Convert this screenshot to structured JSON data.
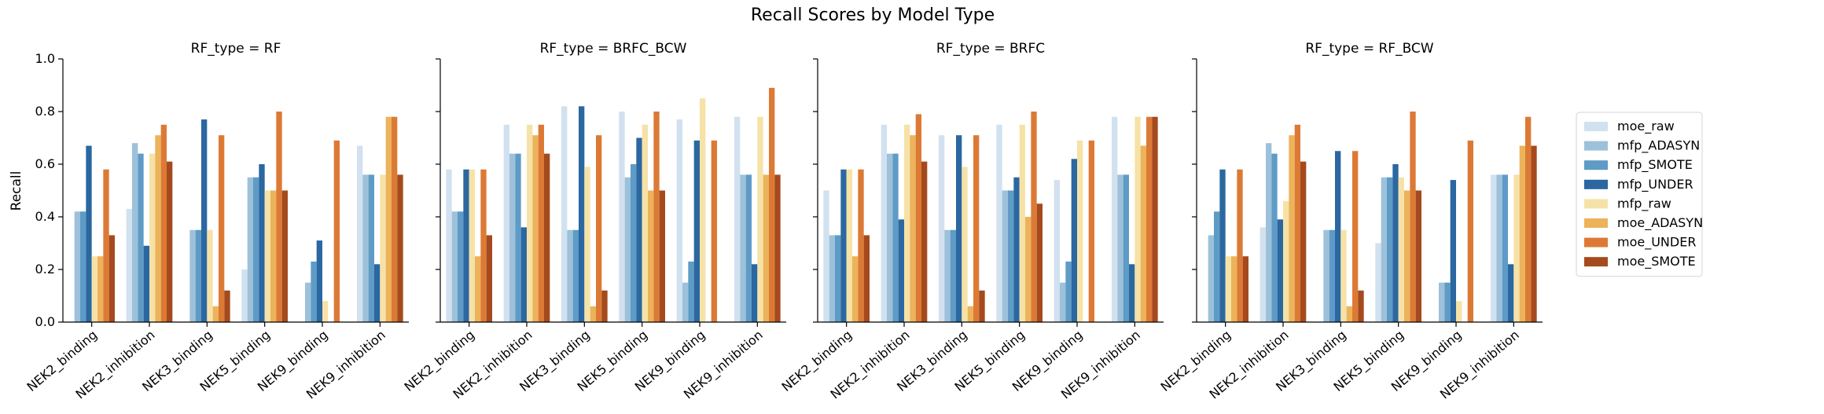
{
  "suptitle": "Recall Scores by Model Type",
  "ylabel": "Recall",
  "yticks": [
    "0.0",
    "0.2",
    "0.4",
    "0.6",
    "0.8",
    "1.0"
  ],
  "legend": {
    "placement": "right",
    "entries": [
      {
        "name": "moe_raw",
        "color": "#d1e1ef"
      },
      {
        "name": "mfp_ADASYN",
        "color": "#9dc1da"
      },
      {
        "name": "mfp_SMOTE",
        "color": "#5e9bc6"
      },
      {
        "name": "mfp_UNDER",
        "color": "#2b67a0"
      },
      {
        "name": "mfp_raw",
        "color": "#f6e2a7"
      },
      {
        "name": "moe_ADASYN",
        "color": "#ecb35b"
      },
      {
        "name": "moe_UNDER",
        "color": "#dc7a35"
      },
      {
        "name": "moe_SMOTE",
        "color": "#a54a1e"
      }
    ]
  },
  "chart_data": [
    {
      "type": "bar",
      "title": "RF_type = RF",
      "ylim": [
        0,
        1
      ],
      "categories": [
        "NEK2_binding",
        "NEK2_inhibition",
        "NEK3_binding",
        "NEK5_binding",
        "NEK9_binding",
        "NEK9_inhibition"
      ],
      "series": [
        {
          "name": "moe_raw",
          "values": [
            0.0,
            0.43,
            0.0,
            0.2,
            0.0,
            0.67
          ]
        },
        {
          "name": "mfp_ADASYN",
          "values": [
            0.42,
            0.68,
            0.35,
            0.55,
            0.15,
            0.56
          ]
        },
        {
          "name": "mfp_SMOTE",
          "values": [
            0.42,
            0.64,
            0.35,
            0.55,
            0.23,
            0.56
          ]
        },
        {
          "name": "mfp_UNDER",
          "values": [
            0.67,
            0.29,
            0.77,
            0.6,
            0.31,
            0.22
          ]
        },
        {
          "name": "mfp_raw",
          "values": [
            0.25,
            0.64,
            0.35,
            0.5,
            0.08,
            0.56
          ]
        },
        {
          "name": "moe_ADASYN",
          "values": [
            0.25,
            0.71,
            0.06,
            0.5,
            0.0,
            0.78
          ]
        },
        {
          "name": "moe_UNDER",
          "values": [
            0.58,
            0.75,
            0.71,
            0.8,
            0.69,
            0.78
          ]
        },
        {
          "name": "moe_SMOTE",
          "values": [
            0.33,
            0.61,
            0.12,
            0.5,
            0.0,
            0.56
          ]
        }
      ]
    },
    {
      "type": "bar",
      "title": "RF_type = BRFC_BCW",
      "ylim": [
        0,
        1
      ],
      "categories": [
        "NEK2_binding",
        "NEK2_inhibition",
        "NEK3_binding",
        "NEK5_binding",
        "NEK9_binding",
        "NEK9_inhibition"
      ],
      "series": [
        {
          "name": "moe_raw",
          "values": [
            0.58,
            0.75,
            0.82,
            0.8,
            0.77,
            0.78
          ]
        },
        {
          "name": "mfp_ADASYN",
          "values": [
            0.42,
            0.64,
            0.35,
            0.55,
            0.15,
            0.56
          ]
        },
        {
          "name": "mfp_SMOTE",
          "values": [
            0.42,
            0.64,
            0.35,
            0.6,
            0.23,
            0.56
          ]
        },
        {
          "name": "mfp_UNDER",
          "values": [
            0.58,
            0.36,
            0.82,
            0.7,
            0.69,
            0.22
          ]
        },
        {
          "name": "mfp_raw",
          "values": [
            0.58,
            0.75,
            0.59,
            0.75,
            0.85,
            0.78
          ]
        },
        {
          "name": "moe_ADASYN",
          "values": [
            0.25,
            0.71,
            0.06,
            0.5,
            0.0,
            0.56
          ]
        },
        {
          "name": "moe_UNDER",
          "values": [
            0.58,
            0.75,
            0.71,
            0.8,
            0.69,
            0.89
          ]
        },
        {
          "name": "moe_SMOTE",
          "values": [
            0.33,
            0.64,
            0.12,
            0.5,
            0.0,
            0.56
          ]
        }
      ]
    },
    {
      "type": "bar",
      "title": "RF_type = BRFC",
      "ylim": [
        0,
        1
      ],
      "categories": [
        "NEK2_binding",
        "NEK2_inhibition",
        "NEK3_binding",
        "NEK5_binding",
        "NEK9_binding",
        "NEK9_inhibition"
      ],
      "series": [
        {
          "name": "moe_raw",
          "values": [
            0.5,
            0.75,
            0.71,
            0.75,
            0.54,
            0.78
          ]
        },
        {
          "name": "mfp_ADASYN",
          "values": [
            0.33,
            0.64,
            0.35,
            0.5,
            0.15,
            0.56
          ]
        },
        {
          "name": "mfp_SMOTE",
          "values": [
            0.33,
            0.64,
            0.35,
            0.5,
            0.23,
            0.56
          ]
        },
        {
          "name": "mfp_UNDER",
          "values": [
            0.58,
            0.39,
            0.71,
            0.55,
            0.62,
            0.22
          ]
        },
        {
          "name": "mfp_raw",
          "values": [
            0.58,
            0.75,
            0.59,
            0.75,
            0.69,
            0.78
          ]
        },
        {
          "name": "moe_ADASYN",
          "values": [
            0.25,
            0.71,
            0.06,
            0.4,
            0.0,
            0.67
          ]
        },
        {
          "name": "moe_UNDER",
          "values": [
            0.58,
            0.79,
            0.71,
            0.8,
            0.69,
            0.78
          ]
        },
        {
          "name": "moe_SMOTE",
          "values": [
            0.33,
            0.61,
            0.12,
            0.45,
            0.0,
            0.78
          ]
        }
      ]
    },
    {
      "type": "bar",
      "title": "RF_type = RF_BCW",
      "ylim": [
        0,
        1
      ],
      "categories": [
        "NEK2_binding",
        "NEK2_inhibition",
        "NEK3_binding",
        "NEK5_binding",
        "NEK9_binding",
        "NEK9_inhibition"
      ],
      "series": [
        {
          "name": "moe_raw",
          "values": [
            0.0,
            0.36,
            0.0,
            0.3,
            0.0,
            0.56
          ]
        },
        {
          "name": "mfp_ADASYN",
          "values": [
            0.33,
            0.68,
            0.35,
            0.55,
            0.15,
            0.56
          ]
        },
        {
          "name": "mfp_SMOTE",
          "values": [
            0.42,
            0.64,
            0.35,
            0.55,
            0.15,
            0.56
          ]
        },
        {
          "name": "mfp_UNDER",
          "values": [
            0.58,
            0.39,
            0.65,
            0.6,
            0.54,
            0.22
          ]
        },
        {
          "name": "mfp_raw",
          "values": [
            0.25,
            0.46,
            0.35,
            0.55,
            0.08,
            0.56
          ]
        },
        {
          "name": "moe_ADASYN",
          "values": [
            0.25,
            0.71,
            0.06,
            0.5,
            0.0,
            0.67
          ]
        },
        {
          "name": "moe_UNDER",
          "values": [
            0.58,
            0.75,
            0.65,
            0.8,
            0.69,
            0.78
          ]
        },
        {
          "name": "moe_SMOTE",
          "values": [
            0.25,
            0.61,
            0.12,
            0.5,
            0.0,
            0.67
          ]
        }
      ]
    }
  ]
}
